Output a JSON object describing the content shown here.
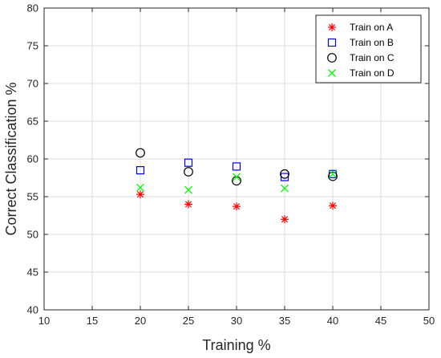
{
  "chart_data": {
    "type": "scatter",
    "title": "",
    "xlabel": "Training %",
    "ylabel": "Correct Classification %",
    "xlim": [
      10,
      50
    ],
    "ylim": [
      40,
      80
    ],
    "xticks": [
      10,
      15,
      20,
      25,
      30,
      35,
      40,
      45,
      50
    ],
    "yticks": [
      40,
      45,
      50,
      55,
      60,
      65,
      70,
      75,
      80
    ],
    "grid": true,
    "legend_position": "top-right",
    "series": [
      {
        "name": "Train on A",
        "marker": "asterisk",
        "color": "#ff0000",
        "x": [
          20,
          25,
          30,
          35,
          40
        ],
        "y": [
          55.3,
          54.0,
          53.7,
          52.0,
          53.8
        ]
      },
      {
        "name": "Train on B",
        "marker": "square",
        "color": "#0000ff",
        "x": [
          20,
          25,
          30,
          35,
          40
        ],
        "y": [
          58.5,
          59.5,
          59.0,
          57.6,
          58.0
        ]
      },
      {
        "name": "Train on C",
        "marker": "circle",
        "color": "#000000",
        "x": [
          20,
          25,
          30,
          35,
          40
        ],
        "y": [
          60.8,
          58.3,
          57.1,
          58.0,
          57.7
        ]
      },
      {
        "name": "Train on D",
        "marker": "cross",
        "color": "#00ff00",
        "x": [
          20,
          25,
          30,
          35,
          40
        ],
        "y": [
          56.2,
          55.9,
          57.6,
          56.1,
          58.0
        ]
      }
    ]
  }
}
